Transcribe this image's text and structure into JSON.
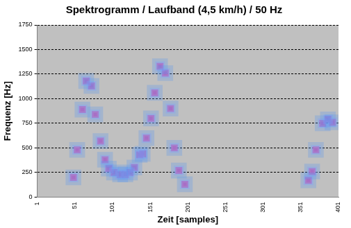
{
  "chart_data": {
    "type": "scatter",
    "title": "Spektrogramm / Laufband (4,5 km/h) / 50 Hz",
    "x_label": "Zeit [samples]",
    "y_label": "Frequenz [Hz]",
    "x": [
      49,
      54,
      61,
      66,
      73,
      78,
      85,
      91,
      96,
      103,
      111,
      118,
      124,
      130,
      137,
      141,
      146,
      152,
      157,
      164,
      171,
      178,
      183,
      189,
      197,
      361,
      366,
      371,
      380,
      387,
      393
    ],
    "values": [
      200,
      480,
      890,
      1180,
      1130,
      840,
      570,
      380,
      290,
      250,
      230,
      230,
      250,
      300,
      430,
      440,
      600,
      800,
      1060,
      1330,
      1260,
      900,
      500,
      270,
      130,
      170,
      260,
      480,
      750,
      790,
      760
    ],
    "color": "#e8206a",
    "marker": "square",
    "xlim": [
      1,
      401
    ],
    "xticks": [
      1,
      51,
      101,
      151,
      201,
      251,
      301,
      351,
      401
    ],
    "ylim": [
      0,
      1750
    ],
    "yticks": [
      0,
      250,
      500,
      750,
      1000,
      1250,
      1500,
      1750
    ],
    "grid": "y"
  }
}
